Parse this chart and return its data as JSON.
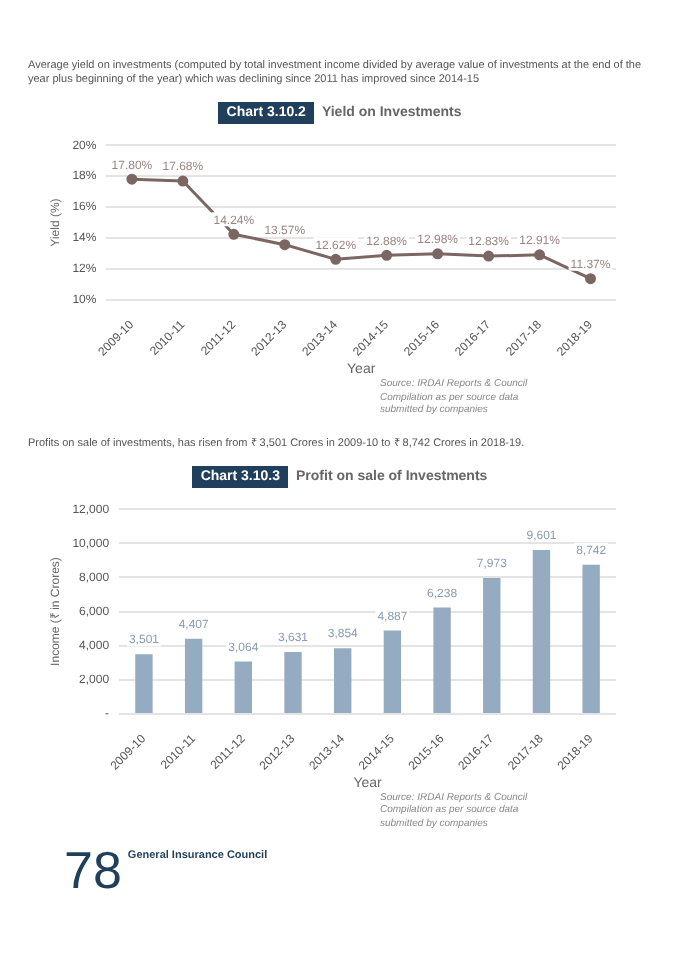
{
  "chart_data": [
    {
      "type": "line",
      "title": "Chart 3.10.2",
      "subtitle": "Yield on Investments",
      "xlabel": "Year",
      "ylabel": "Yield (%)",
      "categories": [
        "2009-10",
        "2010-11",
        "2011-12",
        "2012-13",
        "2013-14",
        "2014-15",
        "2015-16",
        "2016-17",
        "2017-18",
        "2018-19"
      ],
      "series": [
        {
          "color": "#7b6663",
          "values": [
            17.8,
            17.68,
            14.24,
            13.57,
            12.62,
            12.88,
            12.98,
            12.83,
            12.91,
            11.37
          ],
          "value_labels": [
            "17.80%",
            "17.68%",
            "14.24%",
            "13.57%",
            "12.62%",
            "12.88%",
            "12.98%",
            "12.83%",
            "12.91%",
            "11.37%"
          ]
        }
      ],
      "ylim": [
        10,
        20
      ],
      "yticks": [
        {
          "value": 10,
          "label": "10%"
        },
        {
          "value": 12,
          "label": "12%"
        },
        {
          "value": 14,
          "label": "14%"
        },
        {
          "value": 16,
          "label": "16%"
        },
        {
          "value": 18,
          "label": "18%"
        },
        {
          "value": 20,
          "label": "20%"
        }
      ],
      "grid": "y",
      "marker": "circle",
      "legend": false,
      "annotations": [
        "Average yield on investments (computed by total investment income divided by average value of investments at the end of the year plus beginning of the year) which was declining since 2011 has improved since 2014-15",
        "Source: IRDAI Reports & Council Compilation as per source data submitted by companies"
      ]
    },
    {
      "type": "bar",
      "title": "Chart 3.10.3",
      "subtitle": "Profit on sale of Investments",
      "xlabel": "Year",
      "ylabel": "Income (₹ in Crores)",
      "categories": [
        "2009-10",
        "2010-11",
        "2011-12",
        "2012-13",
        "2013-14",
        "2014-15",
        "2015-16",
        "2016-17",
        "2017-18",
        "2018-19"
      ],
      "series": [
        {
          "color": "#95abc2",
          "values": [
            3501,
            4407,
            3064,
            3631,
            3854,
            4887,
            6238,
            7973,
            9601,
            8742
          ],
          "value_labels": [
            "3,501",
            "4,407",
            "3,064",
            "3,631",
            "3,854",
            "4,887",
            "6,238",
            "7,973",
            "9,601",
            "8,742"
          ]
        }
      ],
      "ylim": [
        0,
        12000
      ],
      "yticks": [
        {
          "value": 0,
          "label": "-"
        },
        {
          "value": 2000,
          "label": "2,000"
        },
        {
          "value": 4000,
          "label": "4,000"
        },
        {
          "value": 6000,
          "label": "6,000"
        },
        {
          "value": 8000,
          "label": "8,000"
        },
        {
          "value": 10000,
          "label": "10,000"
        },
        {
          "value": 12000,
          "label": "12,000"
        }
      ],
      "grid": "y",
      "legend": false,
      "annotations": [
        "Profits on sale of investments, has risen from ₹ 3,501 Crores in 2009-10 to ₹ 8,742 Crores in 2018-19.",
        "Source: IRDAI Reports & Council Compilation as per source data submitted by companies",
        "78",
        "General Insurance Council"
      ]
    }
  ]
}
